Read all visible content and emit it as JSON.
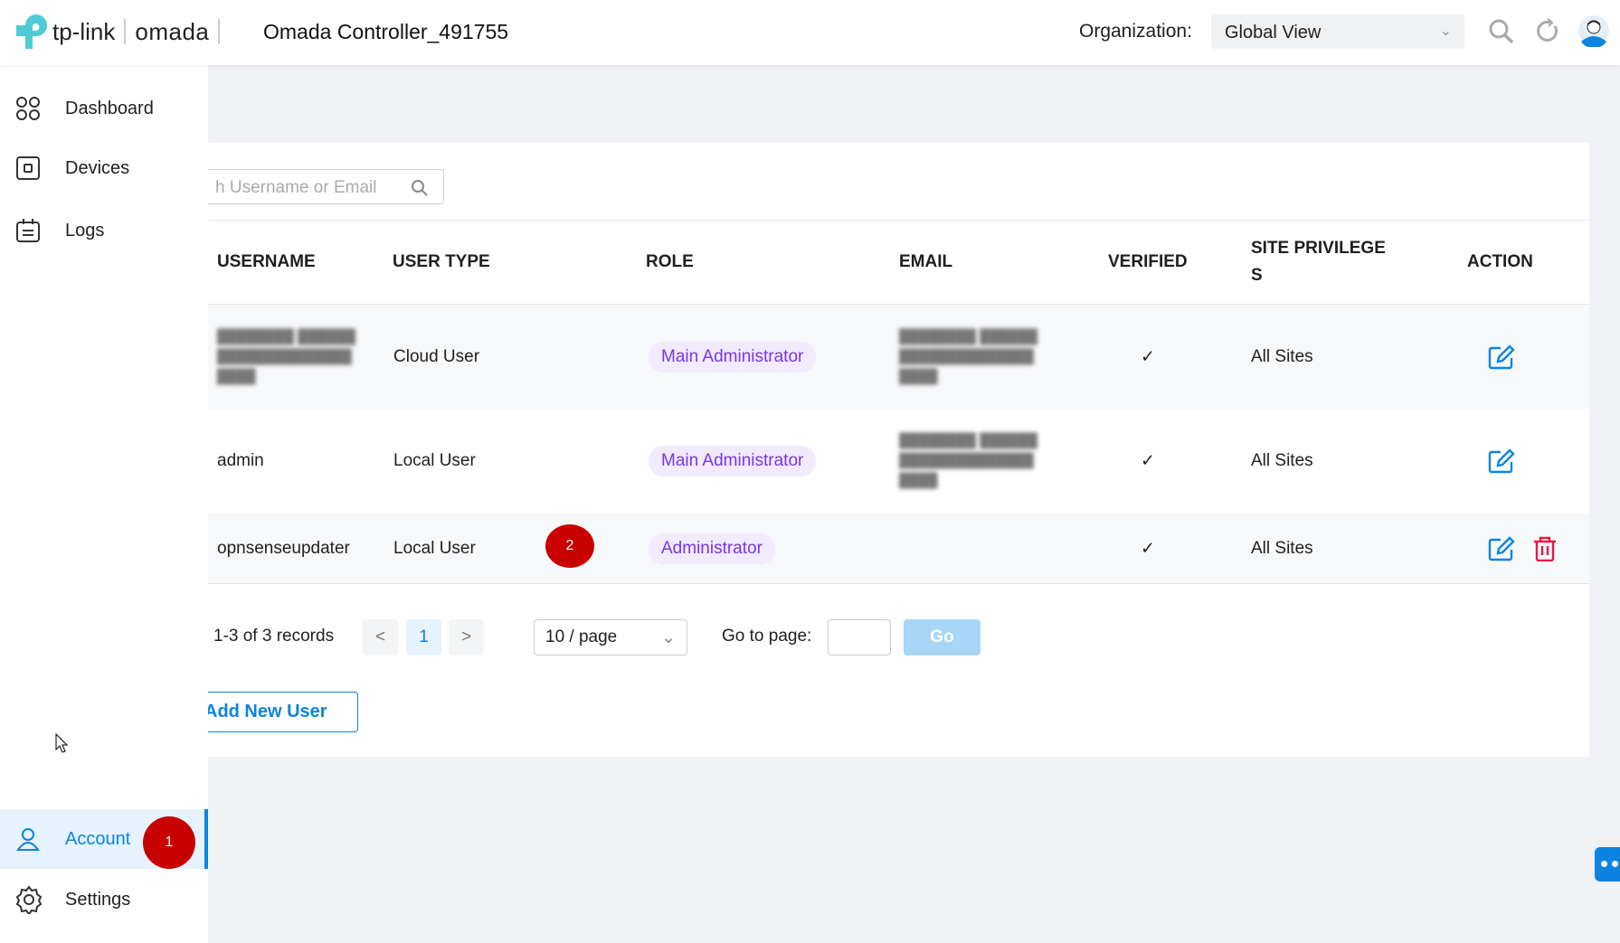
{
  "header": {
    "brand": "tp-link",
    "product": "omada",
    "controller_title": "Omada Controller_491755",
    "org_label": "Organization:",
    "org_value": "Global View"
  },
  "sidebar": {
    "items": [
      {
        "label": "Dashboard",
        "icon": "dashboard-icon"
      },
      {
        "label": "Devices",
        "icon": "devices-icon"
      },
      {
        "label": "Logs",
        "icon": "logs-icon"
      },
      {
        "label": "Account",
        "icon": "user-icon",
        "active": true
      },
      {
        "label": "Settings",
        "icon": "gear-icon"
      }
    ]
  },
  "annotations": {
    "badge1": "1",
    "badge2": "2"
  },
  "search": {
    "placeholder": "h Username or Email"
  },
  "table": {
    "headers": [
      "USERNAME",
      "USER TYPE",
      "ROLE",
      "EMAIL",
      "VERIFIED",
      "SITE PRIVILEGE S",
      "ACTION"
    ],
    "rows": [
      {
        "username": "",
        "user_type": "Cloud User",
        "role": "Main Administrator",
        "email": "",
        "verified": "✓",
        "sites": "All Sites",
        "delete": false
      },
      {
        "username": "admin",
        "user_type": "Local User",
        "role": "Main Administrator",
        "email": "",
        "verified": "✓",
        "sites": "All Sites",
        "delete": false
      },
      {
        "username": "opnsenseupdater",
        "user_type": "Local User",
        "role": "Administrator",
        "email": "",
        "verified": "✓",
        "sites": "All Sites",
        "delete": true
      }
    ]
  },
  "pagination": {
    "records": "1-3 of 3 records",
    "prev": "<",
    "page": "1",
    "next": ">",
    "page_size": "10 / page",
    "goto_label": "Go to page:",
    "goto_value": "",
    "go": "Go"
  },
  "actions": {
    "add_user": "Add New User"
  },
  "colors": {
    "accent": "#0a84e0",
    "danger": "#e8174a",
    "badge": "#c80000",
    "role_text": "#7a35e6"
  }
}
